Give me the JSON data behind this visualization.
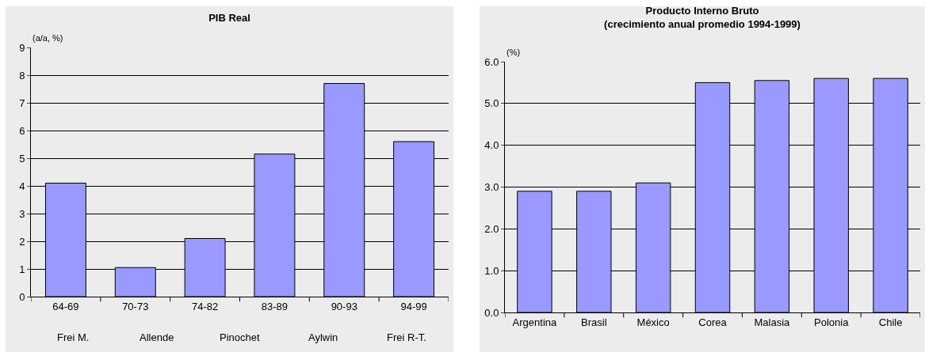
{
  "chart_data": [
    {
      "type": "bar",
      "title": "PIB Real",
      "ylabel": "(a/a, %)",
      "categories": [
        "64-69",
        "70-73",
        "74-82",
        "83-89",
        "90-93",
        "94-99"
      ],
      "series": [
        {
          "color": "#9999ff",
          "values": [
            4.1,
            1.05,
            2.1,
            5.15,
            7.7,
            5.6
          ]
        }
      ],
      "ylim": [
        0,
        9
      ],
      "yticks": [
        0,
        1,
        2,
        3,
        4,
        5,
        6,
        7,
        8,
        9
      ],
      "grid": "y",
      "annotations": [
        "Frei M.",
        "Allende",
        "Pinochet",
        "Aylwin",
        "Frei R-T."
      ]
    },
    {
      "type": "bar",
      "title": "Producto Interno Bruto\n(crecimiento anual promedio 1994-1999)",
      "ylabel": "(%)",
      "categories": [
        "Argentina",
        "Brasil",
        "México",
        "Corea",
        "Malasia",
        "Polonia",
        "Chile"
      ],
      "series": [
        {
          "color": "#9999ff",
          "values": [
            2.9,
            2.9,
            3.1,
            5.5,
            5.55,
            5.6,
            5.6
          ]
        }
      ],
      "ylim": [
        0,
        6
      ],
      "yticks": [
        {
          "value": 0,
          "label": "0.0"
        },
        {
          "value": 1,
          "label": "1.0"
        },
        {
          "value": 2,
          "label": "2.0"
        },
        {
          "value": 3,
          "label": "3.0"
        },
        {
          "value": 4,
          "label": "4.0"
        },
        {
          "value": 5,
          "label": "5.0"
        },
        {
          "value": 6,
          "label": "6.0"
        }
      ],
      "grid": "y"
    }
  ]
}
